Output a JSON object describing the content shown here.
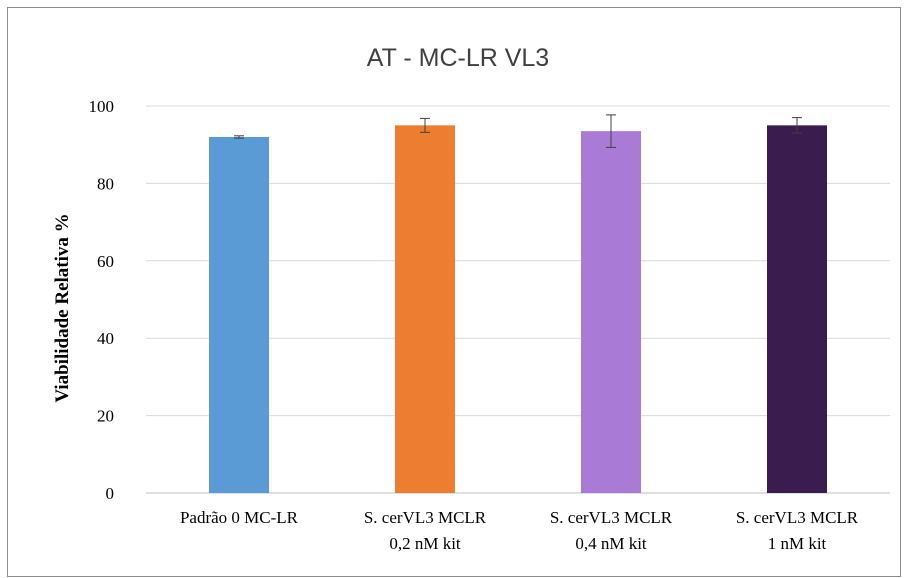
{
  "chart_data": {
    "type": "bar",
    "title": "AT - MC-LR VL3",
    "xlabel": "",
    "ylabel": "Viabilidade Relativa %",
    "ylim": [
      0,
      100
    ],
    "yticks": [
      0,
      20,
      40,
      60,
      80,
      100
    ],
    "grid": true,
    "legend": "none",
    "categories": [
      [
        "Padrão 0 MC-LR"
      ],
      [
        "S. cerVL3 MCLR",
        "0,2 nM kit"
      ],
      [
        "S. cerVL3 MCLR",
        "0,4 nM kit"
      ],
      [
        "S. cerVL3 MCLR",
        "1 nM kit"
      ]
    ],
    "values": [
      92.0,
      95.0,
      93.5,
      95.0
    ],
    "errors": [
      0.3,
      1.8,
      4.2,
      2.0
    ],
    "colors": [
      "#5b9bd5",
      "#ed7d31",
      "#a97bd6",
      "#3b1c4f"
    ]
  }
}
